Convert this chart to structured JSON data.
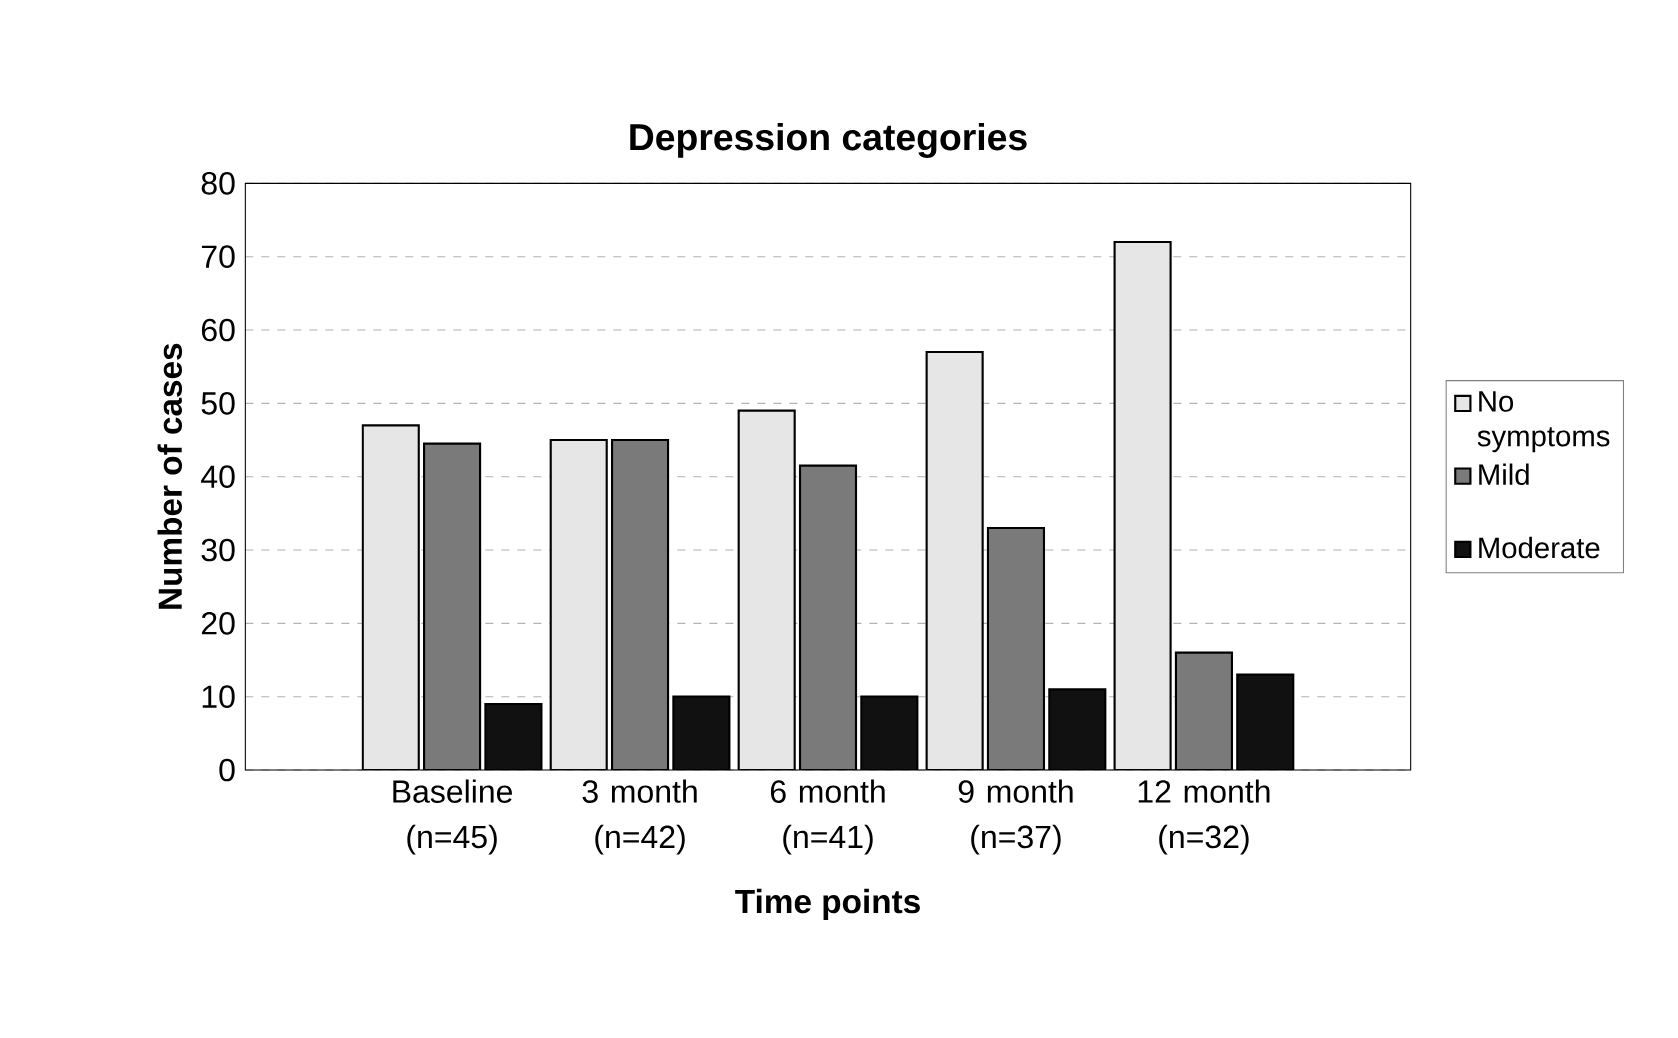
{
  "chart_data": {
    "type": "bar",
    "title": "Depression categories",
    "xlabel": "Time points",
    "ylabel": "Number of cases",
    "categories": [
      "Baseline (n=45)",
      "3 month (n=42)",
      "6 month (n=41)",
      "9 month (n=37)",
      "12 month (n=32)"
    ],
    "series": [
      {
        "name": "No symptoms",
        "color": "#e6e6e6",
        "values": [
          47,
          45,
          49,
          57,
          72
        ]
      },
      {
        "name": "Mild",
        "color": "#7a7a7a",
        "values": [
          44.5,
          45,
          41.5,
          33,
          16
        ]
      },
      {
        "name": "Moderate",
        "color": "#111111",
        "values": [
          9,
          10,
          10,
          11,
          13
        ]
      }
    ],
    "ylim": [
      0,
      80
    ],
    "yticks": [
      0,
      10,
      20,
      30,
      40,
      50,
      60,
      70,
      80
    ],
    "grid": "y",
    "legend": "right"
  }
}
